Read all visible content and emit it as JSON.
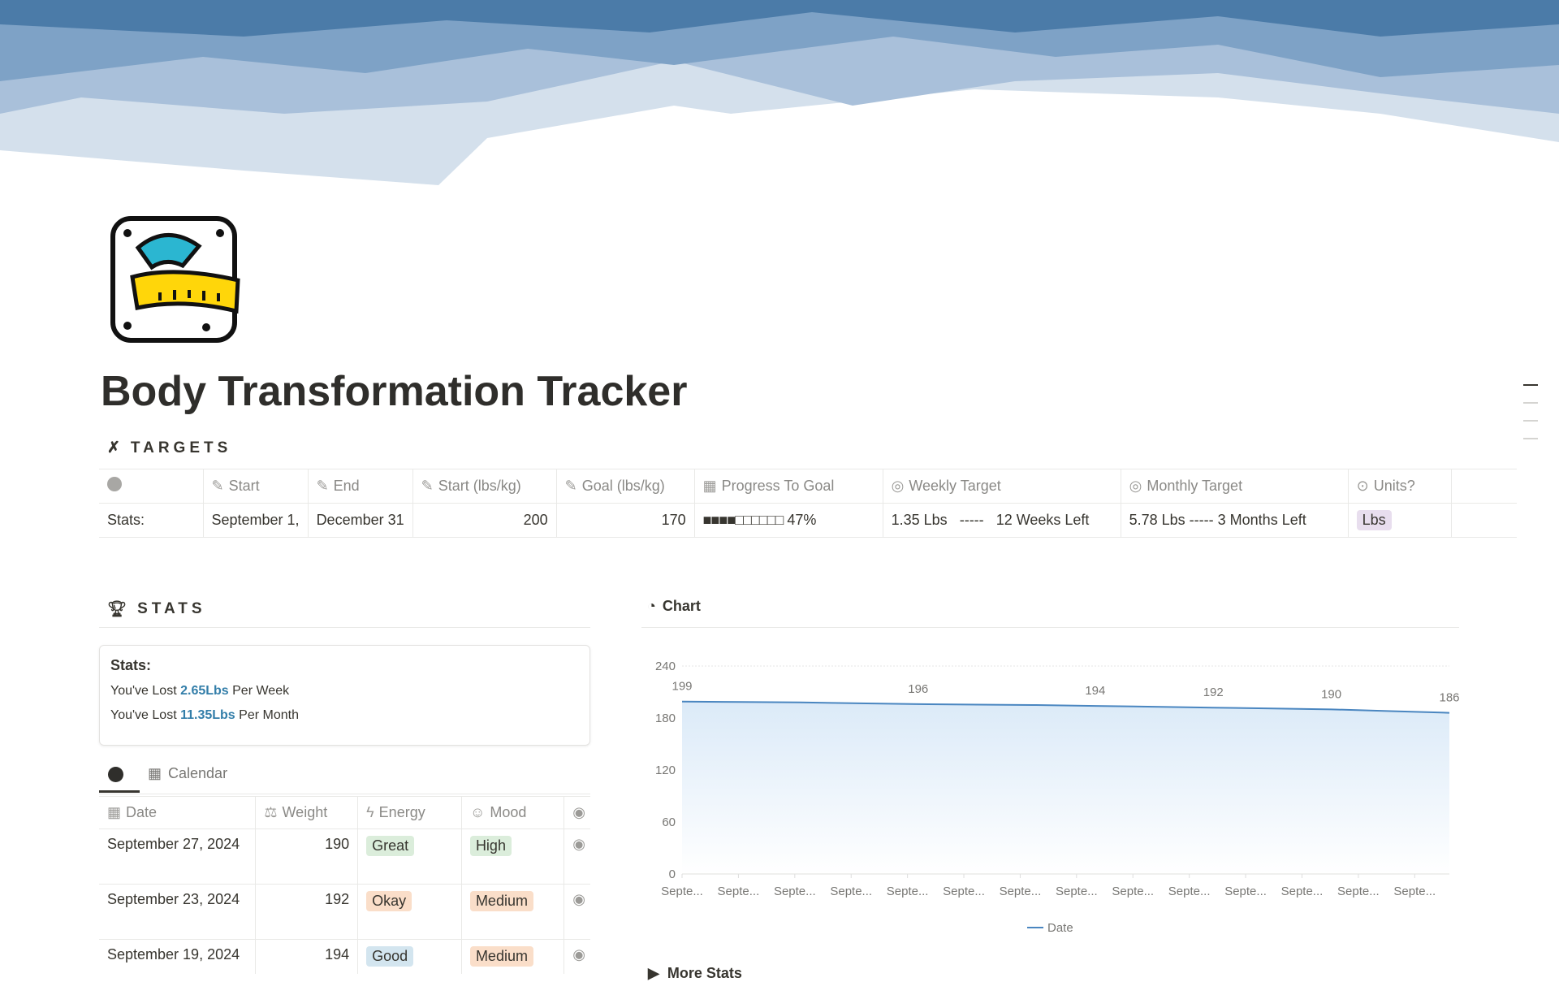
{
  "page": {
    "title": "Body Transformation Tracker"
  },
  "targets": {
    "heading": "TARGETS",
    "columns": [
      "",
      "Start",
      "End",
      "Start (lbs/kg)",
      "Goal (lbs/kg)",
      "Progress To Goal",
      "Weekly Target",
      "Monthly Target",
      "Units?"
    ],
    "row": {
      "label": "Stats:",
      "start": "September 1,",
      "end": "December 31",
      "start_weight": "200",
      "goal_weight": "170",
      "progress_bar": "■■■■□□□□□□",
      "progress": "47%",
      "progress_value": 0.47,
      "weekly_target": "1.35 Lbs",
      "weekly_sep": "-----",
      "weekly_left": "12 Weeks Left",
      "monthly_target": "5.78 Lbs ----- 3 Months Left",
      "units": "Lbs"
    }
  },
  "stats": {
    "heading": "STATS",
    "callout_title": "Stats:",
    "line1_pre": "You've Lost ",
    "line1_val": "2.65Lbs",
    "line1_post": " Per Week",
    "line2_pre": "You've Lost ",
    "line2_val": "11.35Lbs",
    "line2_post": " Per Month",
    "tabs": [
      "Calendar"
    ],
    "columns": [
      "Date",
      "Weight",
      "Energy",
      "Mood"
    ],
    "rows": [
      {
        "date": "September 27, 2024",
        "weight": "190",
        "energy": "Great",
        "mood": "High"
      },
      {
        "date": "September 23, 2024",
        "weight": "192",
        "energy": "Okay",
        "mood": "Medium"
      },
      {
        "date": "September 19, 2024",
        "weight": "194",
        "energy": "Good",
        "mood": "Medium"
      }
    ]
  },
  "chart": {
    "heading": "Chart",
    "more": "More Stats"
  },
  "chart_data": {
    "type": "area",
    "x": [
      "Septe...",
      "Septe...",
      "Septe...",
      "Septe...",
      "Septe...",
      "Septe...",
      "Septe...",
      "Septe...",
      "Septe...",
      "Septe...",
      "Septe...",
      "Septe...",
      "Septe...",
      "Septe..."
    ],
    "series": [
      {
        "name": "Date",
        "values": [
          199,
          198.5,
          198,
          197,
          196,
          195.5,
          195,
          194,
          193,
          192,
          191,
          190,
          188,
          186
        ]
      }
    ],
    "data_labels": [
      {
        "index": 0,
        "text": "199"
      },
      {
        "index": 4,
        "text": "196"
      },
      {
        "index": 7,
        "text": "194"
      },
      {
        "index": 9,
        "text": "192"
      },
      {
        "index": 11,
        "text": "190"
      },
      {
        "index": 13,
        "text": "186"
      }
    ],
    "yticks": [
      "0",
      "60",
      "120",
      "180",
      "240"
    ],
    "ylim": [
      0,
      240
    ],
    "grid": true,
    "legend": "bottom",
    "color": "#4a86c0"
  }
}
